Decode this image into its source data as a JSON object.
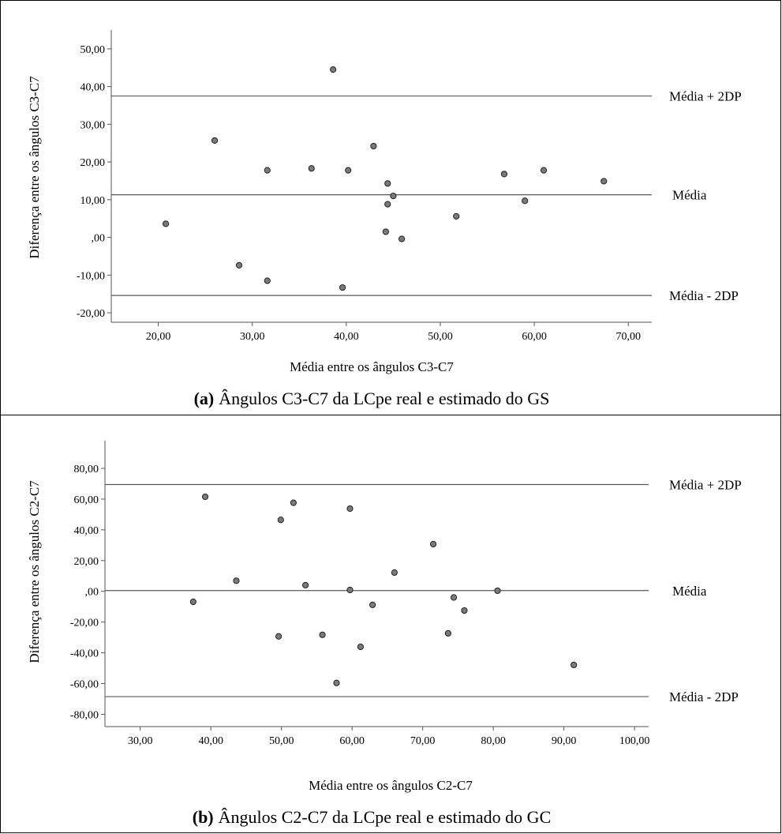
{
  "chart_data": [
    {
      "type": "scatter",
      "xlabel": "Média entre os ângulos C3-C7",
      "ylabel": "Diferença entre os ângulos C3-C7",
      "xlim": [
        15,
        72.5
      ],
      "ylim": [
        -22.5,
        55
      ],
      "xticks": [
        20,
        30,
        40,
        50,
        60,
        70
      ],
      "xtick_labels": [
        "20,00",
        "30,00",
        "40,00",
        "50,00",
        "60,00",
        "70,00"
      ],
      "yticks": [
        -20,
        -10,
        0,
        10,
        20,
        30,
        40,
        50
      ],
      "ytick_labels": [
        "-20,00",
        "-10,00",
        ",00",
        "10,00",
        "20,00",
        "30,00",
        "40,00",
        "50,00"
      ],
      "reference_lines": [
        {
          "label": "Média + 2DP",
          "y": 37.5
        },
        {
          "label": "Média",
          "y": 11.3
        },
        {
          "label": "Média - 2DP",
          "y": -15.4
        }
      ],
      "points": [
        {
          "x": 20.8,
          "y": 3.6
        },
        {
          "x": 26.0,
          "y": 25.7
        },
        {
          "x": 28.6,
          "y": -7.4
        },
        {
          "x": 31.6,
          "y": 17.8
        },
        {
          "x": 31.6,
          "y": -11.5
        },
        {
          "x": 36.3,
          "y": 18.3
        },
        {
          "x": 38.6,
          "y": 44.5
        },
        {
          "x": 39.6,
          "y": -13.3
        },
        {
          "x": 40.2,
          "y": 17.8
        },
        {
          "x": 42.9,
          "y": 24.2
        },
        {
          "x": 44.2,
          "y": 1.5
        },
        {
          "x": 44.4,
          "y": 8.8
        },
        {
          "x": 44.4,
          "y": 14.3
        },
        {
          "x": 45.0,
          "y": 11.0
        },
        {
          "x": 45.9,
          "y": -0.4
        },
        {
          "x": 51.7,
          "y": 5.6
        },
        {
          "x": 56.8,
          "y": 16.8
        },
        {
          "x": 59.0,
          "y": 9.7
        },
        {
          "x": 61.0,
          "y": 17.8
        },
        {
          "x": 67.4,
          "y": 14.9
        }
      ]
    },
    {
      "type": "scatter",
      "xlabel": "Média entre os ângulos C2-C7",
      "ylabel": "Diferença entre os ângulos C2-C7",
      "xlim": [
        25,
        102
      ],
      "ylim": [
        -88,
        98
      ],
      "xticks": [
        30,
        40,
        50,
        60,
        70,
        80,
        90,
        100
      ],
      "xtick_labels": [
        "30,00",
        "40,00",
        "50,00",
        "60,00",
        "70,00",
        "80,00",
        "90,00",
        "100,00"
      ],
      "yticks": [
        -80,
        -60,
        -40,
        -20,
        0,
        20,
        40,
        60,
        80
      ],
      "ytick_labels": [
        "-80,00",
        "-60,00",
        "-40,00",
        "-20,00",
        ",00",
        "20,00",
        "40,00",
        "60,00",
        "80,00"
      ],
      "reference_lines": [
        {
          "label": "Média + 2DP",
          "y": 69.5
        },
        {
          "label": "Média",
          "y": 0.5
        },
        {
          "label": "Média - 2DP",
          "y": -68.5
        }
      ],
      "points": [
        {
          "x": 37.5,
          "y": -6.8
        },
        {
          "x": 39.2,
          "y": 61.5
        },
        {
          "x": 43.6,
          "y": 6.9
        },
        {
          "x": 49.6,
          "y": -29.3
        },
        {
          "x": 49.9,
          "y": 46.5
        },
        {
          "x": 51.7,
          "y": 57.6
        },
        {
          "x": 53.4,
          "y": 4.0
        },
        {
          "x": 55.8,
          "y": -28.3
        },
        {
          "x": 57.8,
          "y": -59.6
        },
        {
          "x": 59.7,
          "y": 53.8
        },
        {
          "x": 59.7,
          "y": 0.9
        },
        {
          "x": 61.2,
          "y": -36.1
        },
        {
          "x": 62.9,
          "y": -8.8
        },
        {
          "x": 66.0,
          "y": 12.2
        },
        {
          "x": 71.5,
          "y": 30.7
        },
        {
          "x": 73.6,
          "y": -27.3
        },
        {
          "x": 74.4,
          "y": -4.0
        },
        {
          "x": 75.9,
          "y": -12.5
        },
        {
          "x": 80.6,
          "y": 0.4
        },
        {
          "x": 91.4,
          "y": -47.9
        }
      ]
    }
  ],
  "captions": [
    {
      "letter": "(a)",
      "text": "Ângulos C3-C7 da LCpe real e estimado do GS"
    },
    {
      "letter": "(b)",
      "text": "Ângulos C2-C7 da LCpe real e estimado do GC"
    }
  ],
  "colors": {
    "point_fill": "#7a7a7a",
    "point_stroke": "#222222",
    "line": "#5a5a5a",
    "axis": "#555555",
    "border": "#000000"
  }
}
